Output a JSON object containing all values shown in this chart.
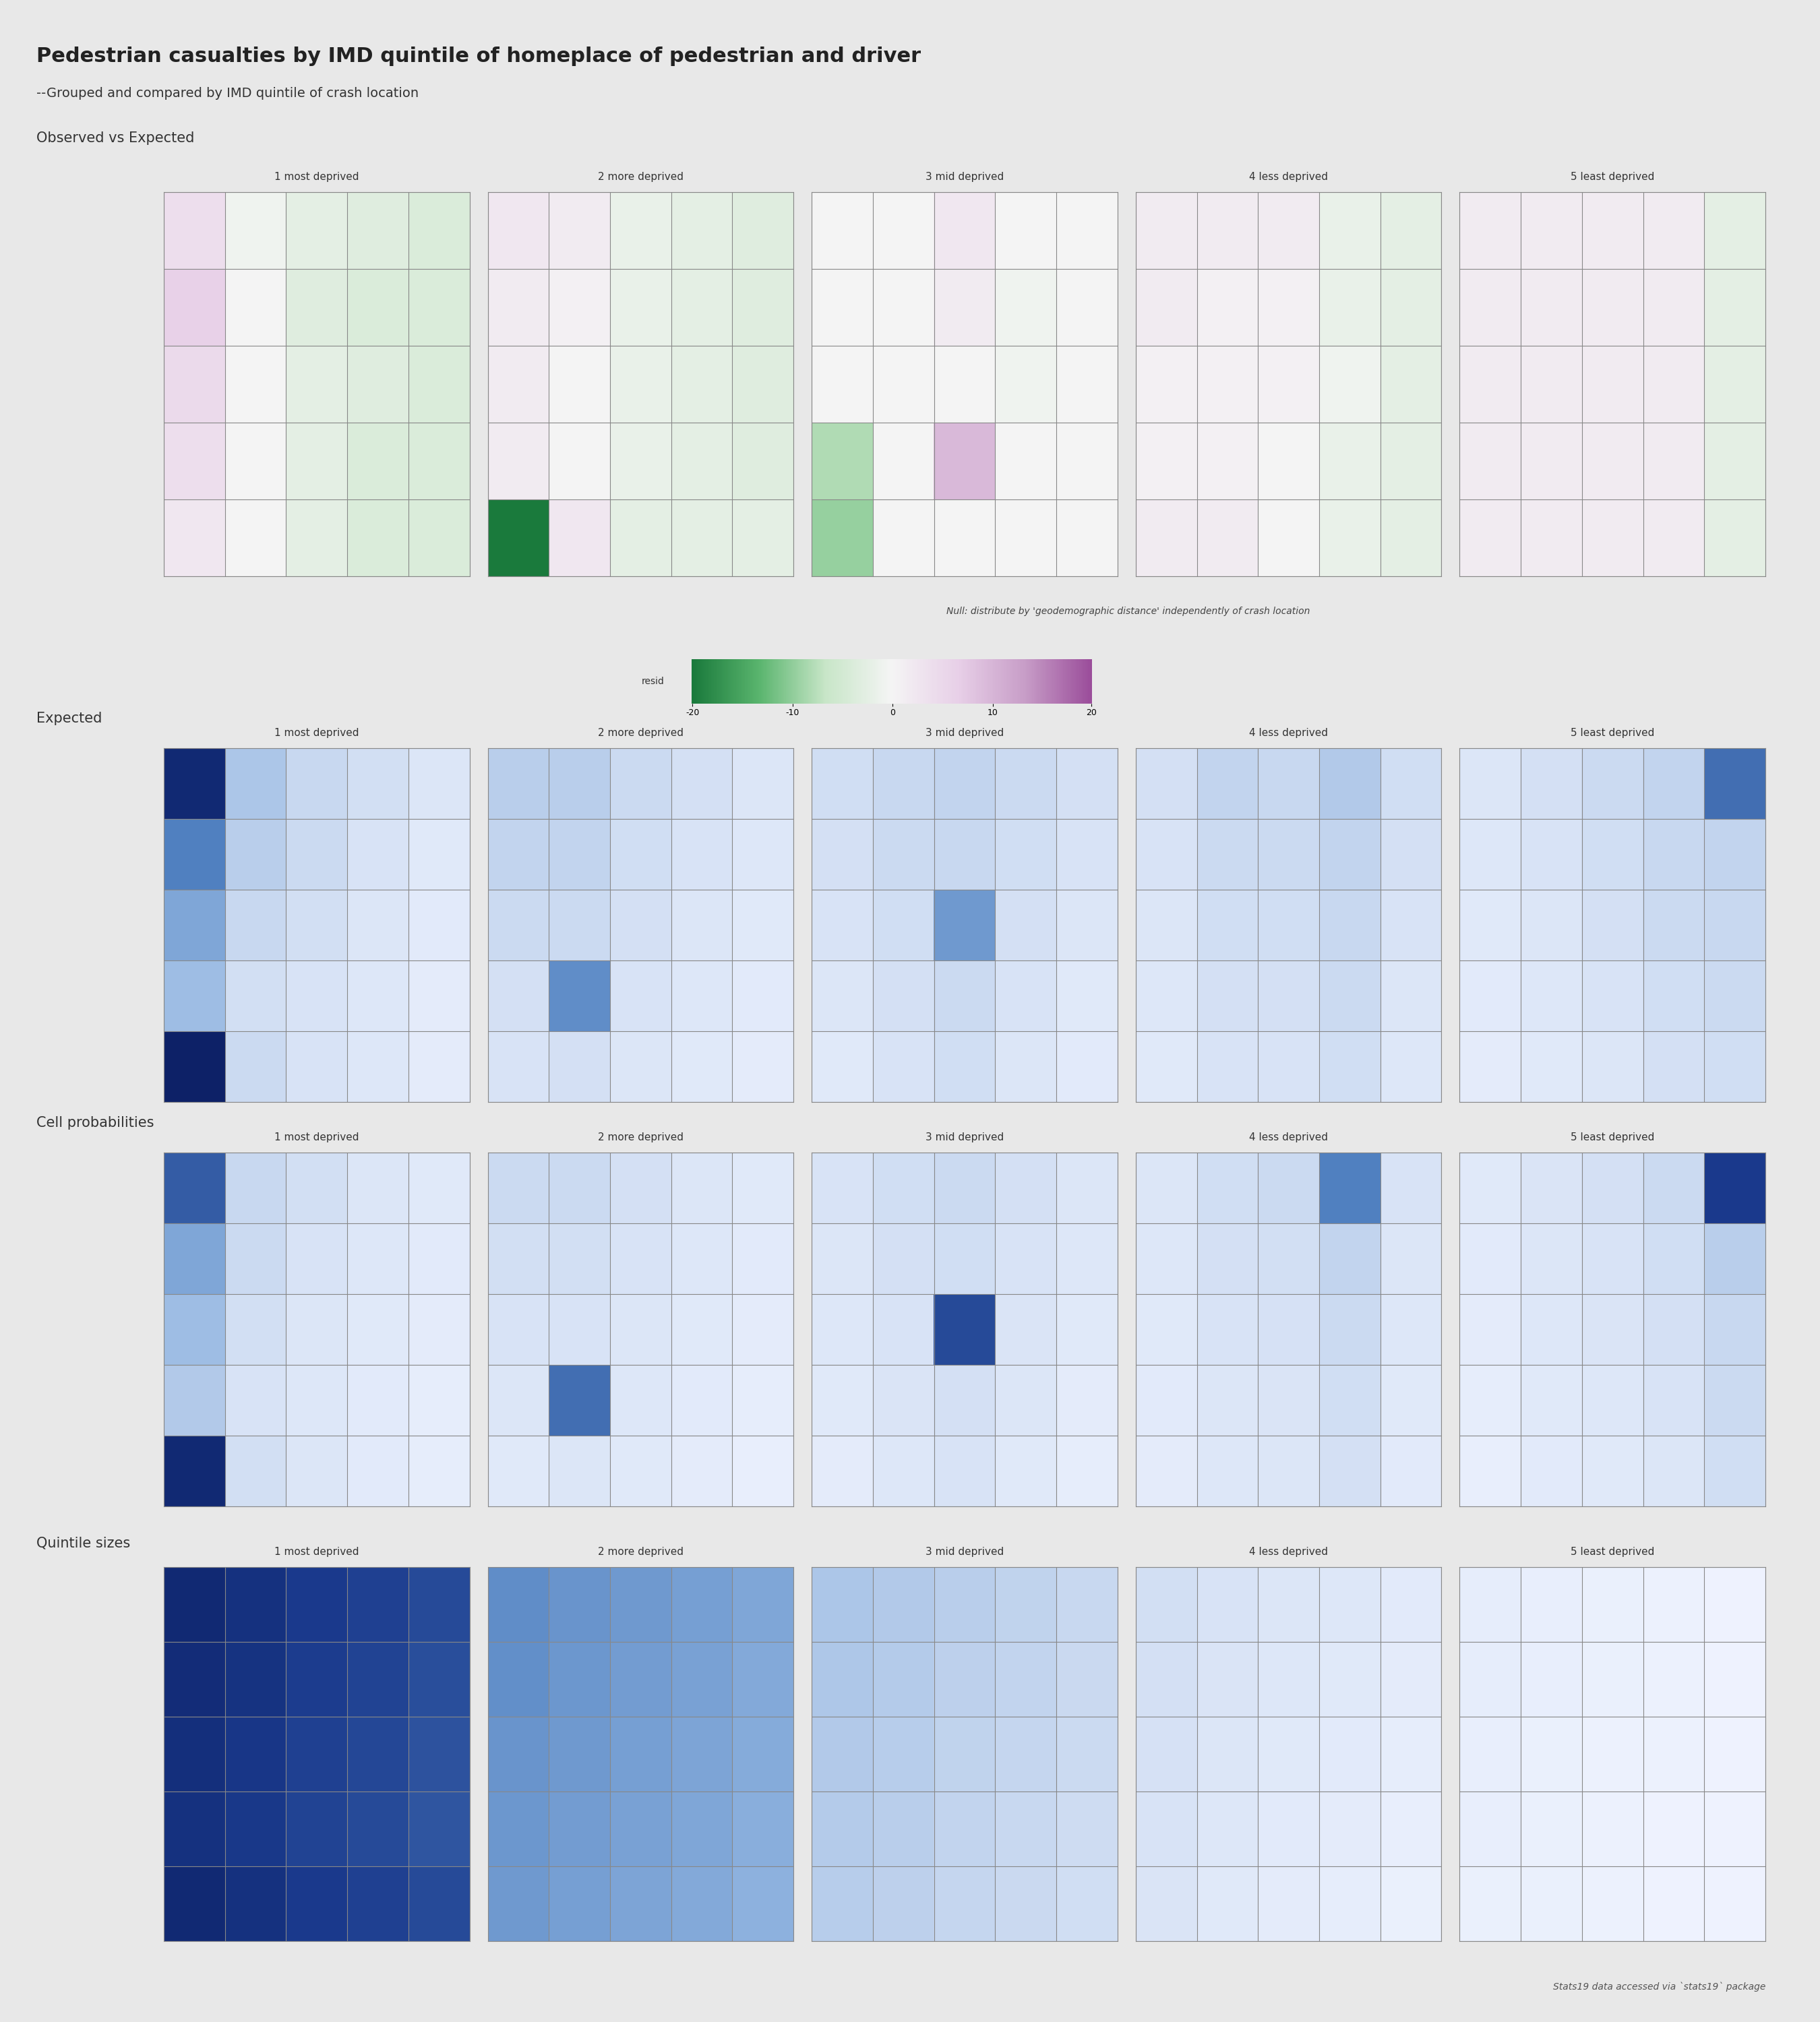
{
  "title": "Pedestrian casualties by IMD quintile of homeplace of pedestrian and driver",
  "subtitle": "--Grouped and compared by IMD quintile of crash location",
  "bg_color": "#e8e8e8",
  "quintile_labels": [
    "1 most deprived",
    "2 more deprived",
    "3 mid deprived",
    "4 less deprived",
    "5 least deprived"
  ],
  "section_labels": [
    "Observed vs Expected",
    "Expected",
    "Cell probabilities",
    "Quintile sizes"
  ],
  "null_text": "Null: distribute by 'geodemographic distance' independently of crash location",
  "footer_text": "Stats19 data accessed via `stats19` package",
  "obs_vs_exp": [
    [
      [
        5,
        -1,
        -3,
        -4,
        -5
      ],
      [
        8,
        0,
        -4,
        -5,
        -5
      ],
      [
        6,
        0,
        -3,
        -4,
        -5
      ],
      [
        5,
        0,
        -3,
        -5,
        -5
      ],
      [
        3,
        0,
        -3,
        -5,
        -5
      ]
    ],
    [
      [
        3,
        2,
        -2,
        -3,
        -4
      ],
      [
        2,
        1,
        -2,
        -3,
        -4
      ],
      [
        2,
        0,
        -2,
        -3,
        -4
      ],
      [
        2,
        0,
        -2,
        -3,
        -4
      ],
      [
        -25,
        3,
        -3,
        -3,
        -3
      ]
    ],
    [
      [
        0,
        0,
        3,
        0,
        0
      ],
      [
        0,
        0,
        2,
        -1,
        0
      ],
      [
        0,
        0,
        0,
        -1,
        0
      ],
      [
        -10,
        0,
        12,
        0,
        0
      ],
      [
        -12,
        0,
        0,
        0,
        0
      ]
    ],
    [
      [
        2,
        2,
        2,
        -2,
        -3
      ],
      [
        2,
        1,
        1,
        -2,
        -3
      ],
      [
        1,
        1,
        1,
        -1,
        -3
      ],
      [
        1,
        1,
        0,
        -2,
        -3
      ],
      [
        2,
        2,
        0,
        -2,
        -3
      ]
    ],
    [
      [
        2,
        2,
        2,
        2,
        -3
      ],
      [
        2,
        2,
        2,
        2,
        -3
      ],
      [
        2,
        2,
        2,
        2,
        -3
      ],
      [
        2,
        2,
        2,
        2,
        -3
      ],
      [
        2,
        2,
        2,
        2,
        -3
      ]
    ]
  ],
  "expected": [
    [
      [
        90,
        30,
        20,
        15,
        10
      ],
      [
        60,
        25,
        18,
        12,
        8
      ],
      [
        45,
        20,
        15,
        10,
        7
      ],
      [
        35,
        15,
        12,
        9,
        6
      ],
      [
        95,
        18,
        12,
        9,
        6
      ]
    ],
    [
      [
        25,
        25,
        18,
        14,
        10
      ],
      [
        22,
        22,
        16,
        12,
        9
      ],
      [
        18,
        18,
        14,
        10,
        8
      ],
      [
        14,
        55,
        12,
        9,
        7
      ],
      [
        12,
        14,
        10,
        8,
        6
      ]
    ],
    [
      [
        16,
        20,
        22,
        18,
        14
      ],
      [
        14,
        18,
        20,
        16,
        12
      ],
      [
        12,
        16,
        50,
        14,
        10
      ],
      [
        10,
        14,
        18,
        12,
        8
      ],
      [
        8,
        12,
        16,
        10,
        7
      ]
    ],
    [
      [
        14,
        22,
        20,
        28,
        16
      ],
      [
        12,
        18,
        18,
        22,
        14
      ],
      [
        10,
        16,
        16,
        20,
        12
      ],
      [
        9,
        14,
        14,
        18,
        10
      ],
      [
        8,
        12,
        12,
        16,
        9
      ]
    ],
    [
      [
        10,
        14,
        18,
        22,
        65
      ],
      [
        9,
        12,
        16,
        20,
        22
      ],
      [
        8,
        10,
        14,
        18,
        20
      ],
      [
        7,
        9,
        12,
        16,
        18
      ],
      [
        6,
        8,
        10,
        14,
        16
      ]
    ]
  ],
  "cell_prob": [
    [
      [
        70,
        20,
        15,
        10,
        8
      ],
      [
        45,
        18,
        12,
        9,
        7
      ],
      [
        35,
        15,
        10,
        8,
        6
      ],
      [
        28,
        12,
        9,
        7,
        5
      ],
      [
        90,
        15,
        10,
        7,
        5
      ]
    ],
    [
      [
        18,
        18,
        14,
        10,
        8
      ],
      [
        15,
        15,
        12,
        9,
        7
      ],
      [
        12,
        12,
        10,
        8,
        6
      ],
      [
        10,
        65,
        9,
        7,
        5
      ],
      [
        8,
        10,
        8,
        6,
        4
      ]
    ],
    [
      [
        12,
        16,
        18,
        14,
        10
      ],
      [
        10,
        14,
        16,
        12,
        9
      ],
      [
        9,
        12,
        75,
        11,
        8
      ],
      [
        8,
        11,
        14,
        10,
        6
      ],
      [
        6,
        9,
        12,
        8,
        5
      ]
    ],
    [
      [
        10,
        16,
        18,
        60,
        12
      ],
      [
        9,
        14,
        15,
        22,
        10
      ],
      [
        8,
        12,
        13,
        18,
        9
      ],
      [
        7,
        10,
        11,
        16,
        8
      ],
      [
        6,
        9,
        10,
        14,
        7
      ]
    ],
    [
      [
        8,
        11,
        14,
        18,
        80
      ],
      [
        7,
        10,
        12,
        16,
        25
      ],
      [
        6,
        9,
        11,
        14,
        20
      ],
      [
        5,
        8,
        9,
        12,
        18
      ],
      [
        4,
        7,
        8,
        10,
        16
      ]
    ]
  ],
  "quintile_sizes": [
    [
      [
        90,
        85,
        80,
        78,
        75
      ],
      [
        88,
        84,
        79,
        77,
        74
      ],
      [
        86,
        82,
        78,
        76,
        73
      ],
      [
        85,
        81,
        77,
        75,
        72
      ],
      [
        90,
        85,
        80,
        78,
        75
      ]
    ],
    [
      [
        55,
        52,
        50,
        48,
        45
      ],
      [
        54,
        51,
        49,
        47,
        44
      ],
      [
        52,
        50,
        48,
        46,
        43
      ],
      [
        51,
        49,
        47,
        45,
        42
      ],
      [
        50,
        48,
        46,
        44,
        41
      ]
    ],
    [
      [
        30,
        28,
        25,
        23,
        20
      ],
      [
        29,
        27,
        24,
        22,
        19
      ],
      [
        28,
        26,
        23,
        21,
        18
      ],
      [
        27,
        25,
        22,
        20,
        17
      ],
      [
        26,
        24,
        21,
        19,
        16
      ]
    ],
    [
      [
        15,
        12,
        10,
        9,
        7
      ],
      [
        14,
        11,
        9,
        8,
        6
      ],
      [
        13,
        10,
        8,
        7,
        5
      ],
      [
        12,
        9,
        7,
        6,
        4
      ],
      [
        11,
        8,
        6,
        5,
        3
      ]
    ],
    [
      [
        5,
        4,
        3,
        2,
        1
      ],
      [
        5,
        4,
        3,
        2,
        1
      ],
      [
        4,
        3,
        2,
        2,
        1
      ],
      [
        4,
        3,
        2,
        1,
        1
      ],
      [
        3,
        3,
        2,
        1,
        1
      ]
    ]
  ]
}
